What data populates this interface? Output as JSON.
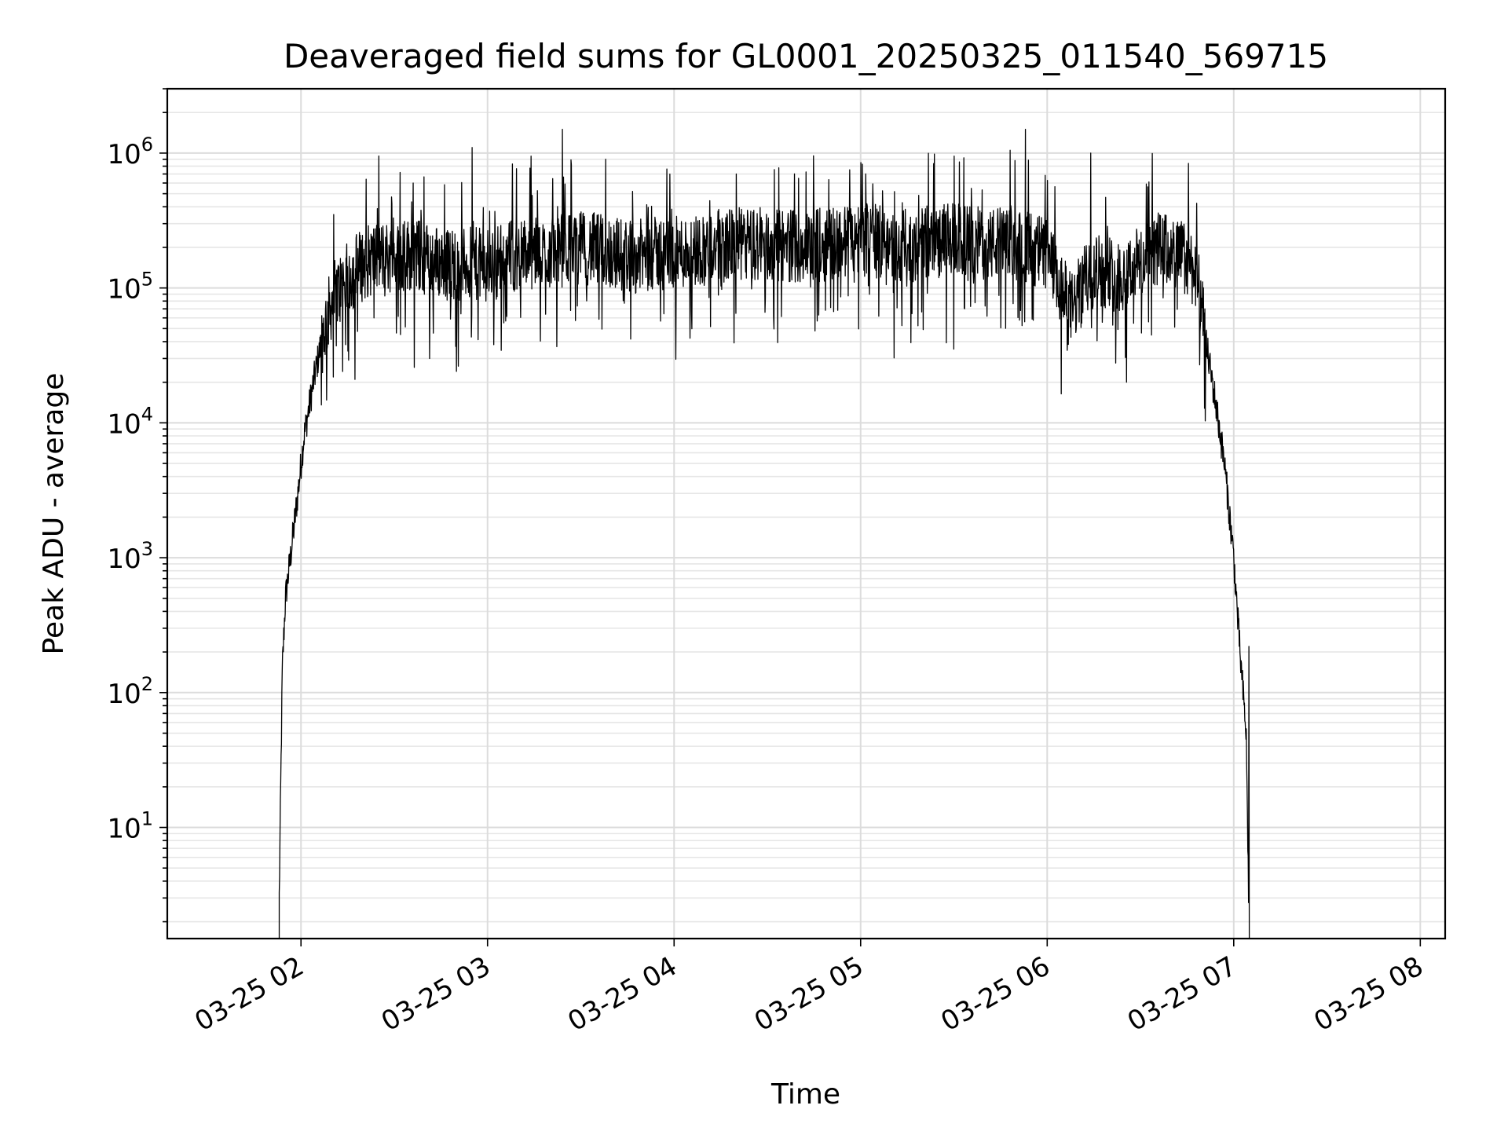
{
  "chart_data": {
    "type": "line",
    "title": "Deaveraged field sums for GL0001_20250325_011540_569715",
    "xlabel": "Time",
    "ylabel": "Peak ADU - average",
    "y_scale": "log",
    "ylim": [
      1.5,
      3000000
    ],
    "xlim": [
      "03-25 01:17",
      "03-25 08:08"
    ],
    "grid": true,
    "line_color": "#000000",
    "x_ticks": [
      {
        "time": "03-25 02:00",
        "label": "03-25 02"
      },
      {
        "time": "03-25 03:00",
        "label": "03-25 03"
      },
      {
        "time": "03-25 04:00",
        "label": "03-25 04"
      },
      {
        "time": "03-25 05:00",
        "label": "03-25 05"
      },
      {
        "time": "03-25 06:00",
        "label": "03-25 06"
      },
      {
        "time": "03-25 07:00",
        "label": "03-25 07"
      },
      {
        "time": "03-25 08:00",
        "label": "03-25 08"
      }
    ],
    "y_ticks": [
      {
        "value": 10,
        "base": "10",
        "exp": "1"
      },
      {
        "value": 100,
        "base": "10",
        "exp": "2"
      },
      {
        "value": 1000,
        "base": "10",
        "exp": "3"
      },
      {
        "value": 10000,
        "base": "10",
        "exp": "4"
      },
      {
        "value": 100000,
        "base": "10",
        "exp": "5"
      },
      {
        "value": 1000000,
        "base": "10",
        "exp": "6"
      }
    ],
    "series": [
      {
        "x": [
          "03-25 01:53",
          "03-25 01:54",
          "03-25 01:55",
          "03-25 01:57",
          "03-25 01:59",
          "03-25 02:01",
          "03-25 02:04",
          "03-25 02:07",
          "03-25 02:10",
          "03-25 02:14",
          "03-25 02:18",
          "03-25 02:22",
          "03-25 02:25",
          "03-25 02:30",
          "03-25 02:36",
          "03-25 02:42",
          "03-25 02:48",
          "03-25 02:54",
          "03-25 03:00",
          "03-25 03:06",
          "03-25 03:12",
          "03-25 03:18",
          "03-25 03:24",
          "03-25 03:30",
          "03-25 03:36",
          "03-25 03:42",
          "03-25 03:48",
          "03-25 03:54",
          "03-25 04:00",
          "03-25 04:06",
          "03-25 04:12",
          "03-25 04:18",
          "03-25 04:24",
          "03-25 04:30",
          "03-25 04:36",
          "03-25 04:42",
          "03-25 04:48",
          "03-25 04:54",
          "03-25 05:00",
          "03-25 05:06",
          "03-25 05:12",
          "03-25 05:18",
          "03-25 05:24",
          "03-25 05:30",
          "03-25 05:36",
          "03-25 05:42",
          "03-25 05:48",
          "03-25 05:54",
          "03-25 06:00",
          "03-25 06:04",
          "03-25 06:08",
          "03-25 06:12",
          "03-25 06:16",
          "03-25 06:20",
          "03-25 06:24",
          "03-25 06:28",
          "03-25 06:32",
          "03-25 06:36",
          "03-25 06:40",
          "03-25 06:44",
          "03-25 06:48",
          "03-25 06:51",
          "03-25 06:54",
          "03-25 06:57",
          "03-25 07:00",
          "03-25 07:02",
          "03-25 07:04",
          "03-25 07:05"
        ],
        "y": [
          3,
          150,
          500,
          1200,
          3000,
          8000,
          20000,
          45000,
          80000,
          110000,
          140000,
          160000,
          170000,
          170000,
          180000,
          160000,
          150000,
          150000,
          150000,
          170000,
          180000,
          180000,
          190000,
          200000,
          190000,
          180000,
          170000,
          180000,
          180000,
          190000,
          200000,
          210000,
          210000,
          200000,
          210000,
          200000,
          210000,
          220000,
          230000,
          220000,
          200000,
          210000,
          220000,
          230000,
          220000,
          210000,
          220000,
          200000,
          180000,
          100000,
          70000,
          110000,
          140000,
          130000,
          120000,
          150000,
          160000,
          200000,
          180000,
          170000,
          130000,
          40000,
          15000,
          5000,
          1000,
          200,
          50,
          1.5
        ]
      }
    ],
    "spikes": [
      {
        "x": "03-25 02:36",
        "y": 600000
      },
      {
        "x": "03-25 02:55",
        "y": 1100000
      },
      {
        "x": "03-25 03:14",
        "y": 950000
      },
      {
        "x": "03-25 03:24",
        "y": 1500000
      },
      {
        "x": "03-25 03:38",
        "y": 900000
      },
      {
        "x": "03-25 04:20",
        "y": 700000
      },
      {
        "x": "03-25 04:40",
        "y": 650000
      },
      {
        "x": "03-25 05:00",
        "y": 850000
      },
      {
        "x": "03-25 05:30",
        "y": 950000
      },
      {
        "x": "03-25 05:48",
        "y": 1050000
      },
      {
        "x": "03-25 05:53",
        "y": 1500000
      },
      {
        "x": "03-25 06:14",
        "y": 1000000
      },
      {
        "x": "03-25 07:06",
        "y": 220
      }
    ]
  }
}
